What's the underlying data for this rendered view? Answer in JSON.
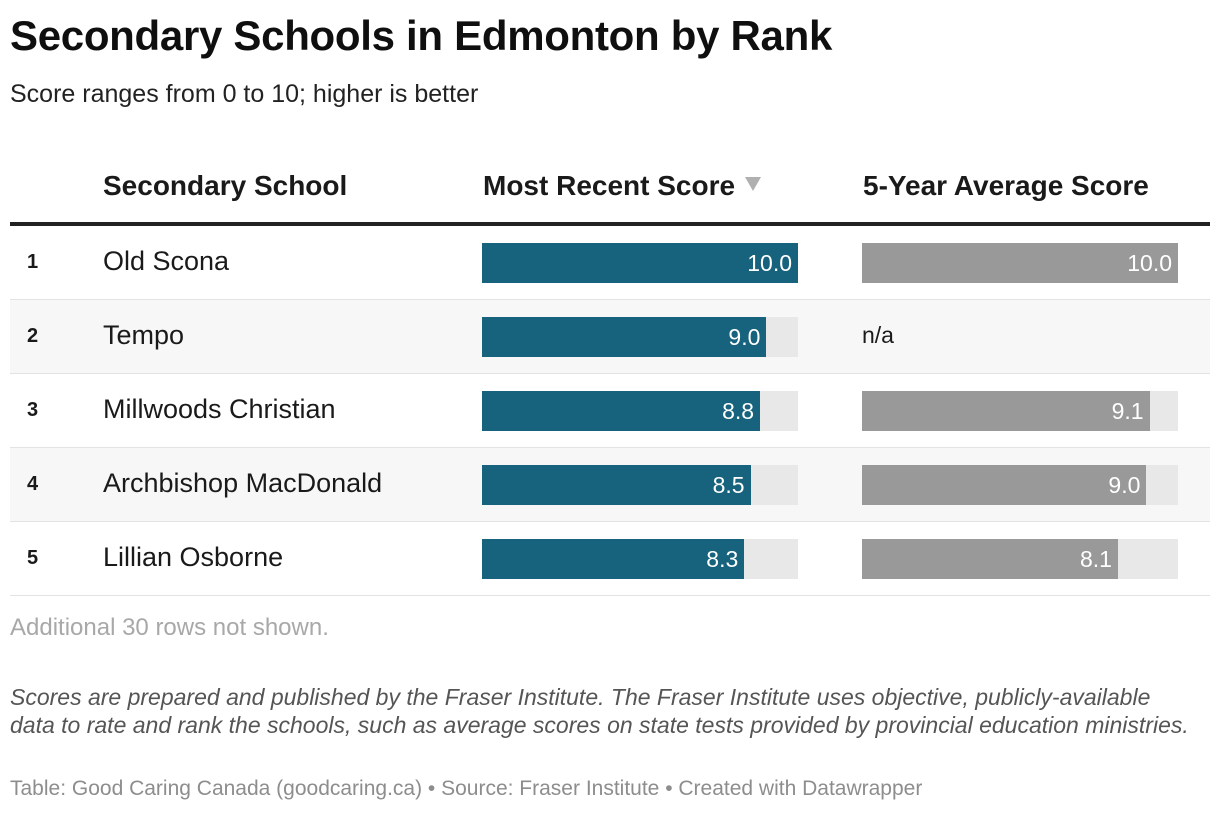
{
  "title": "Secondary Schools in Edmonton by Rank",
  "subtitle": "Score ranges from 0 to 10; higher is better",
  "columns": {
    "school": "Secondary School",
    "recent": "Most Recent Score",
    "average": "5-Year Average Score"
  },
  "colors": {
    "recent_bar": "#17627d",
    "average_bar": "#999999",
    "track": "#e8e8e8"
  },
  "chart_data": {
    "type": "table",
    "title": "Secondary Schools in Edmonton by Rank",
    "subtitle": "Score ranges from 0 to 10; higher is better",
    "columns": [
      "Secondary School",
      "Most Recent Score",
      "5-Year Average Score"
    ],
    "sorted_by": "Most Recent Score",
    "sort_direction": "descending",
    "score_range": [
      0,
      10
    ],
    "rows": [
      {
        "rank": "1",
        "school": "Old Scona",
        "recent": 10.0,
        "recent_label": "10.0",
        "average": 10.0,
        "average_label": "10.0"
      },
      {
        "rank": "2",
        "school": "Tempo",
        "recent": 9.0,
        "recent_label": "9.0",
        "average": null,
        "average_label": "n/a"
      },
      {
        "rank": "3",
        "school": "Millwoods Christian",
        "recent": 8.8,
        "recent_label": "8.8",
        "average": 9.1,
        "average_label": "9.1"
      },
      {
        "rank": "4",
        "school": "Archbishop MacDonald",
        "recent": 8.5,
        "recent_label": "8.5",
        "average": 9.0,
        "average_label": "9.0"
      },
      {
        "rank": "5",
        "school": "Lillian Osborne",
        "recent": 8.3,
        "recent_label": "8.3",
        "average": 8.1,
        "average_label": "8.1"
      }
    ]
  },
  "more_rows_note": "Additional 30 rows not shown.",
  "notes": "Scores are prepared and published by the Fraser Institute. The Fraser Institute uses objective, publicly-available data to rate and rank the schools, such as average scores on state tests provided by provincial education ministries.",
  "footer": "Table: Good Caring Canada (goodcaring.ca) • Source: Fraser Institute • Created with Datawrapper"
}
